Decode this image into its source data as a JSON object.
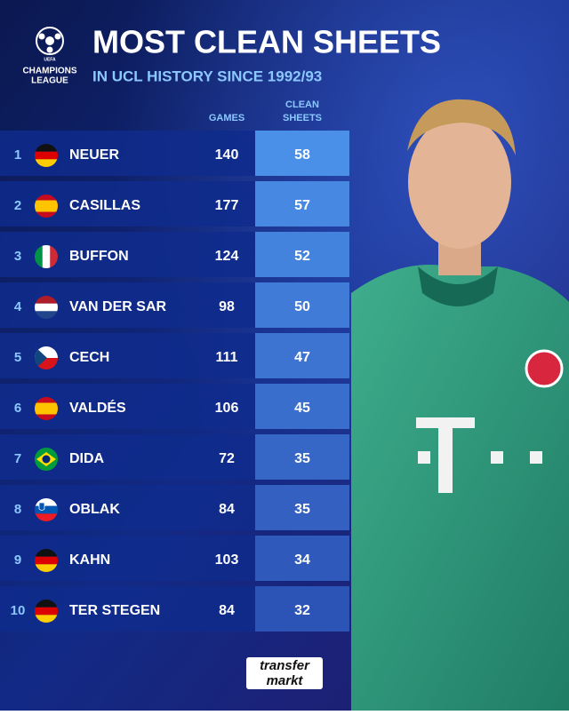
{
  "header": {
    "logo_top": "UEFA",
    "logo_text": [
      "CHAMPIONS",
      "LEAGUE"
    ],
    "title": "MOST CLEAN SHEETS",
    "subtitle": "IN UCL HISTORY SINCE 1992/93"
  },
  "table": {
    "columns": [
      "GAMES",
      [
        "CLEAN",
        "SHEETS"
      ]
    ],
    "rows": [
      [
        "1",
        "NEUER",
        "140",
        "58"
      ],
      [
        "2",
        "CASILLAS",
        "177",
        "57"
      ],
      [
        "3",
        "BUFFON",
        "124",
        "52"
      ],
      [
        "4",
        "VAN DER SAR",
        "98",
        "50"
      ],
      [
        "5",
        "CECH",
        "111",
        "47"
      ],
      [
        "6",
        "VALDÉS",
        "106",
        "45"
      ],
      [
        "7",
        "DIDA",
        "72",
        "35"
      ],
      [
        "8",
        "OBLAK",
        "84",
        "35"
      ],
      [
        "9",
        "KAHN",
        "103",
        "34"
      ],
      [
        "10",
        "TER STEGEN",
        "84",
        "32"
      ]
    ]
  },
  "footer": {
    "logo": [
      "transfer",
      "markt"
    ]
  }
}
